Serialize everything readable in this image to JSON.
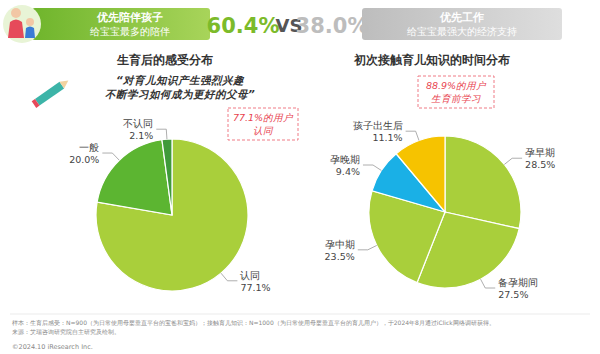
{
  "chart_data": [
    {
      "type": "comparison",
      "categories": [
        "优先陪伴孩子",
        "优先工作"
      ],
      "subtitles": [
        "给宝宝最多的陪伴",
        "给宝宝最强大的经济支持"
      ],
      "values": [
        60.4,
        38.0
      ],
      "value_labels": [
        "60.4%",
        "38.0%"
      ],
      "colors": [
        "#7cbb2a",
        "#bdbdbd"
      ],
      "annotation": "VS"
    },
    {
      "type": "pie",
      "title": "生育后的感受分布",
      "subtitle": [
        "“对育儿知识产生强烈兴趣",
        "不断学习如何成为更好的父母”"
      ],
      "annotation": [
        "77.1%的用户",
        "认同"
      ],
      "categories": [
        "认同",
        "一般",
        "不认同"
      ],
      "values": [
        77.1,
        20.0,
        2.1
      ],
      "value_labels": [
        "77.1%",
        "20.0%",
        "2.1%"
      ],
      "colors": [
        "#a9cf3b",
        "#5cb531",
        "#3f9a3a"
      ],
      "data_labels": true
    },
    {
      "type": "pie",
      "title": "初次接触育儿知识的时间分布",
      "annotation": [
        "88.9%的用户",
        "生育前学习"
      ],
      "categories": [
        "孕早期",
        "备孕期间",
        "孕中期",
        "孕晚期",
        "孩子出生后"
      ],
      "values": [
        28.5,
        27.5,
        23.5,
        9.4,
        11.1
      ],
      "value_labels": [
        "28.5%",
        "27.5%",
        "23.5%",
        "9.4%",
        "11.1%"
      ],
      "colors": [
        "#a9cf3b",
        "#a9cf3b",
        "#a9cf3b",
        "#1ab0e6",
        "#f6c300"
      ],
      "data_labels": true
    }
  ],
  "footer": {
    "note": "样本：生育后感受：N=900（为日常使用母婴垂直平台的宝爸和宝妈）；接触育儿知识：N=1000（为日常使用母婴垂直平台的育儿用户），于2024年8月通过iClick网络调研获得。",
    "source": "来源：艾瑞咨询研究院自主研究及绘制。",
    "copyright": "©2024.10 iResearch Inc."
  }
}
